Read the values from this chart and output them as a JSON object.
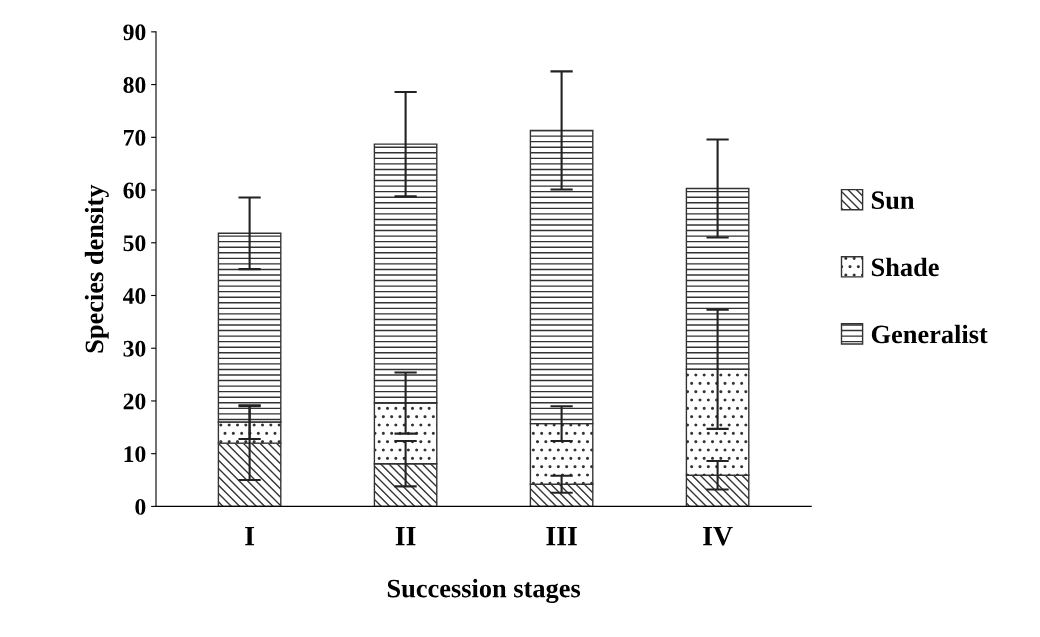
{
  "chart_data": {
    "type": "bar",
    "stacked": true,
    "xlabel": "Succession stages",
    "ylabel": "Species density",
    "categories": [
      "I",
      "II",
      "III",
      "IV"
    ],
    "series": [
      {
        "name": "Sun",
        "color": "#333333",
        "values": [
          12,
          8.1,
          4.2,
          5.9
        ],
        "errors": [
          7,
          4.3,
          1.6,
          2.7
        ]
      },
      {
        "name": "Shade",
        "color": "#333333",
        "values": [
          4,
          11.5,
          11.5,
          20.1
        ],
        "errors": [
          3.2,
          5.8,
          3.3,
          11.3
        ]
      },
      {
        "name": "Generalist",
        "color": "#333333",
        "values": [
          35.8,
          49.1,
          55.6,
          34.3
        ],
        "errors": [
          6.8,
          9.9,
          11.2,
          9.3
        ]
      }
    ],
    "ylim": [
      0,
      90
    ],
    "yticks": [
      0,
      10,
      20,
      30,
      40,
      50,
      60,
      70,
      80,
      90
    ],
    "grid": false,
    "legend": "right"
  }
}
